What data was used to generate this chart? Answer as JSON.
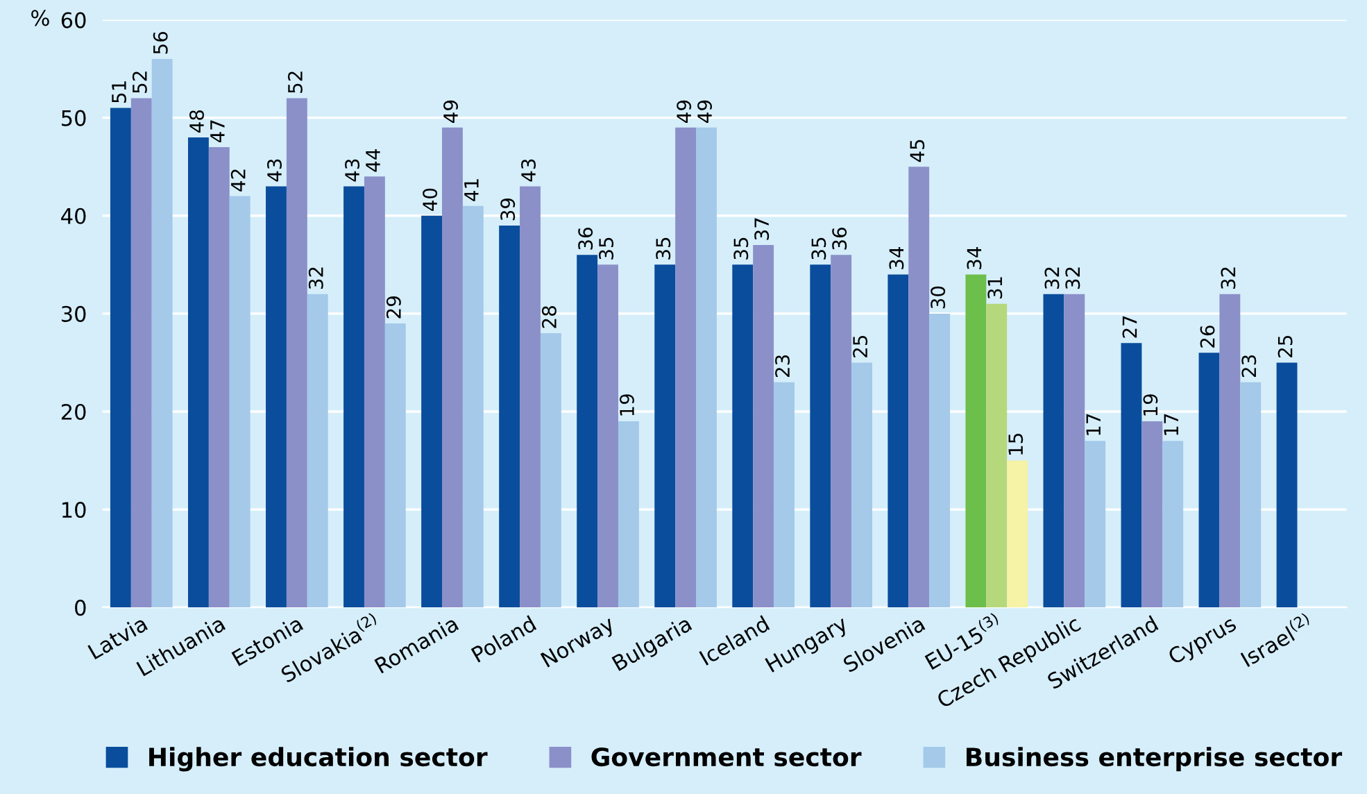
{
  "chart_data": {
    "type": "bar",
    "ylabel": "%",
    "categories": [
      "Latvia",
      "Lithuania",
      "Estonia",
      "Slovakia$^{(2)}$",
      "Romania",
      "Poland",
      "Norway",
      "Bulgaria",
      "Iceland",
      "Hungary",
      "Slovenia",
      "EU-15$^{(3)}$",
      "Czech Republic",
      "Switzerland",
      "Cyprus",
      "Israel$^{(2)}$"
    ],
    "series": [
      {
        "name": "Higher education sector",
        "color": "#0a4d9c",
        "colors": [
          "#0a4d9c",
          "#0a4d9c",
          "#0a4d9c",
          "#0a4d9c",
          "#0a4d9c",
          "#0a4d9c",
          "#0a4d9c",
          "#0a4d9c",
          "#0a4d9c",
          "#0a4d9c",
          "#0a4d9c",
          "#6cbf4a",
          "#0a4d9c",
          "#0a4d9c",
          "#0a4d9c",
          "#0a4d9c"
        ],
        "values": [
          51,
          48,
          43,
          43,
          40,
          39,
          36,
          35,
          35,
          35,
          34,
          34,
          32,
          27,
          26,
          25
        ]
      },
      {
        "name": "Government sector",
        "color": "#8b90c9",
        "colors": [
          "#8b90c9",
          "#8b90c9",
          "#8b90c9",
          "#8b90c9",
          "#8b90c9",
          "#8b90c9",
          "#8b90c9",
          "#8b90c9",
          "#8b90c9",
          "#8b90c9",
          "#8b90c9",
          "#b6d87c",
          "#8b90c9",
          "#8b90c9",
          "#8b90c9",
          "#8b90c9"
        ],
        "values": [
          52,
          47,
          52,
          44,
          49,
          43,
          35,
          49,
          37,
          36,
          45,
          31,
          32,
          19,
          32,
          null
        ]
      },
      {
        "name": "Business enterprise sector",
        "color": "#a4c9e9",
        "colors": [
          "#a4c9e9",
          "#a4c9e9",
          "#a4c9e9",
          "#a4c9e9",
          "#a4c9e9",
          "#a4c9e9",
          "#a4c9e9",
          "#a4c9e9",
          "#a4c9e9",
          "#a4c9e9",
          "#a4c9e9",
          "#f6f2a6",
          "#a4c9e9",
          "#a4c9e9",
          "#a4c9e9",
          "#a4c9e9"
        ],
        "values": [
          56,
          42,
          32,
          29,
          41,
          28,
          19,
          49,
          23,
          25,
          30,
          15,
          17,
          17,
          23,
          null
        ]
      }
    ],
    "ylim": [
      0,
      60
    ],
    "yticks": [
      0,
      10,
      20,
      30,
      40,
      50,
      60
    ],
    "grid": "y",
    "legend": "bottom",
    "data_labels": true
  }
}
